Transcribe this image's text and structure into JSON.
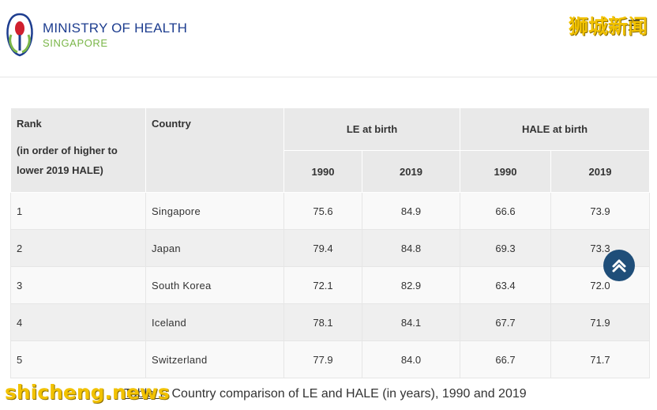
{
  "header": {
    "title": "MINISTRY OF HEALTH",
    "subtitle": "SINGAPORE"
  },
  "watermarks": {
    "top_right": "狮城新闻",
    "bottom_left": "shicheng.news"
  },
  "table": {
    "headers": {
      "rank": "Rank",
      "rank_note": "(in order of higher to lower 2019 HALE)",
      "country": "Country",
      "le": "LE at birth",
      "hale": "HALE at birth",
      "le_1990": "1990",
      "le_2019": "2019",
      "hale_1990": "1990",
      "hale_2019": "2019"
    },
    "rows": [
      {
        "rank": "1",
        "country": "Singapore",
        "le_1990": "75.6",
        "le_2019": "84.9",
        "hale_1990": "66.6",
        "hale_2019": "73.9"
      },
      {
        "rank": "2",
        "country": "Japan",
        "le_1990": "79.4",
        "le_2019": "84.8",
        "hale_1990": "69.3",
        "hale_2019": "73.3"
      },
      {
        "rank": "3",
        "country": "South Korea",
        "le_1990": "72.1",
        "le_2019": "82.9",
        "hale_1990": "63.4",
        "hale_2019": "72.0"
      },
      {
        "rank": "4",
        "country": "Iceland",
        "le_1990": "78.1",
        "le_2019": "84.1",
        "hale_1990": "67.7",
        "hale_2019": "71.9"
      },
      {
        "rank": "5",
        "country": "Switzerland",
        "le_1990": "77.9",
        "le_2019": "84.0",
        "hale_1990": "66.7",
        "hale_2019": "71.7"
      }
    ]
  },
  "caption": {
    "link": "Table 1",
    "text": ": Country comparison of LE and HALE (in years), 1990 and 2019"
  },
  "colors": {
    "brand_blue": "#1d3d8f",
    "brand_green": "#7ab648",
    "scroll_button": "#1f4e79",
    "header_bg": "#e9e9e9"
  },
  "icons": {
    "menu": "hamburger-menu-icon",
    "scroll_top": "chevron-up-icon"
  }
}
